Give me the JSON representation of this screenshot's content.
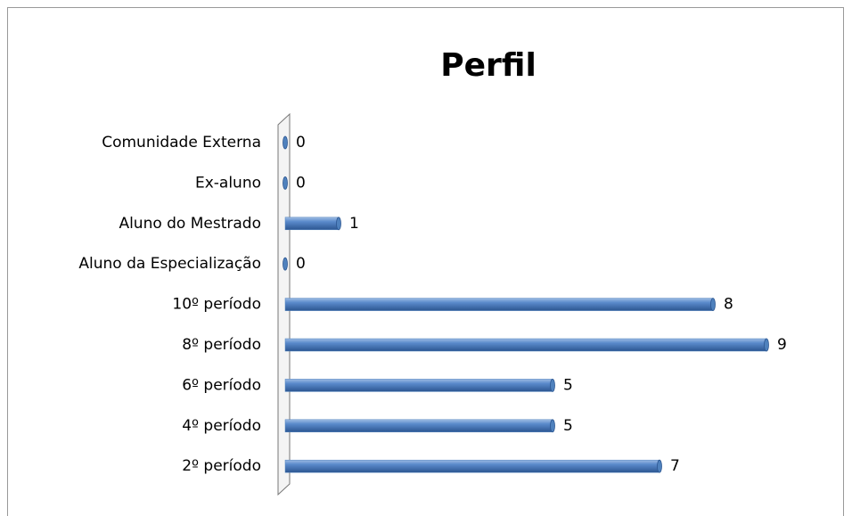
{
  "chart_data": {
    "type": "bar",
    "orientation": "horizontal",
    "title": "Perfil",
    "categories": [
      "Comunidade Externa",
      "Ex-aluno",
      "Aluno do Mestrado",
      "Aluno da Especialização",
      "10º período",
      "8º período",
      "6º período",
      "4º período",
      "2º período"
    ],
    "values": [
      0,
      0,
      1,
      0,
      8,
      9,
      5,
      5,
      7
    ],
    "color": "#4f81bd"
  }
}
